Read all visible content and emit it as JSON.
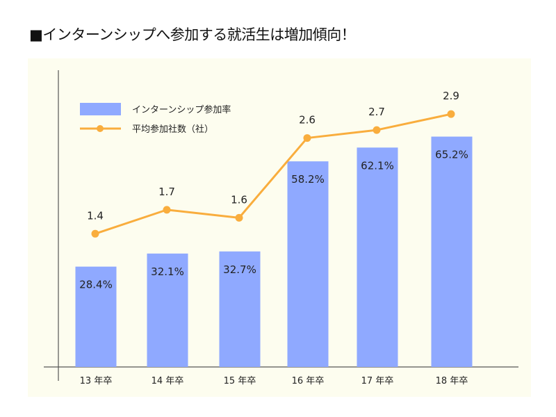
{
  "title": "■インターンシップへ参加する就活生は増加傾向！",
  "chart_data": {
    "type": "bar",
    "title": "■インターンシップへ参加する就活生は増加傾向！",
    "categories": [
      "13 年卒",
      "14 年卒",
      "15 年卒",
      "16 年卒",
      "17 年卒",
      "18 年卒"
    ],
    "series": [
      {
        "name": "インターンシップ参加率",
        "type": "bar",
        "color": "#8fa9ff",
        "values": [
          28.4,
          32.1,
          32.7,
          58.2,
          62.1,
          65.2
        ],
        "labels": [
          "28.4%",
          "32.1%",
          "32.7%",
          "58.2%",
          "62.1%",
          "65.2%"
        ]
      },
      {
        "name": "平均参加社数（社）",
        "type": "line",
        "color": "#f9ad3d",
        "values": [
          1.4,
          1.7,
          1.6,
          2.6,
          2.7,
          2.9
        ],
        "labels": [
          "1.4",
          "1.7",
          "1.6",
          "2.6",
          "2.7",
          "2.9"
        ]
      }
    ],
    "xlabel": "",
    "ylabel": "",
    "bar_ylim": [
      0,
      84
    ],
    "line_ylim": [
      -0.27,
      3.45
    ],
    "grid": false,
    "legend": "top-left"
  }
}
